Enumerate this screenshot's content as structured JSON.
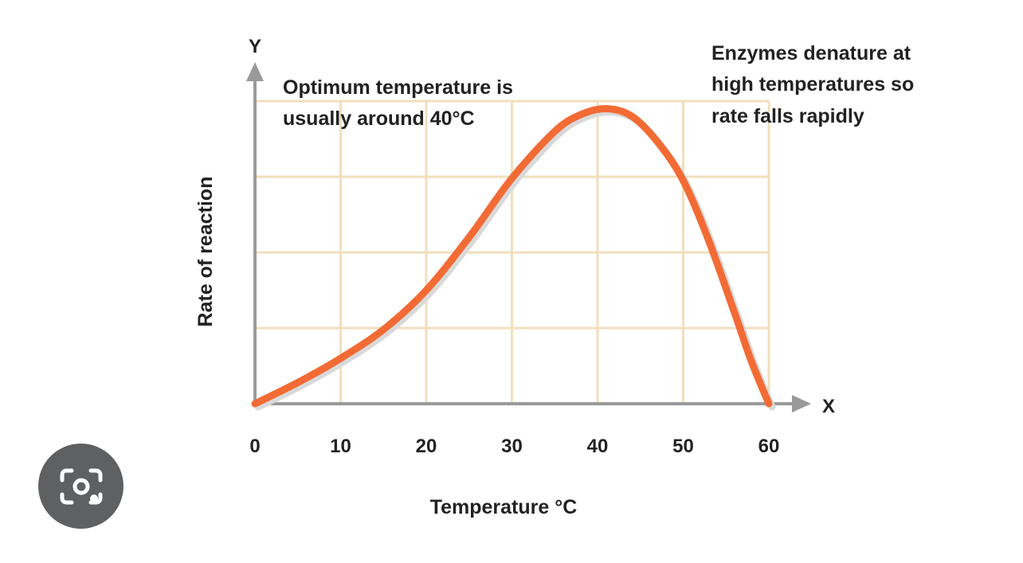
{
  "chart_data": {
    "type": "line",
    "xlabel": "Temperature °C",
    "ylabel": "Rate of reaction",
    "x_axis_letter": "X",
    "y_axis_letter": "Y",
    "xlim": [
      0,
      60
    ],
    "ylim": [
      0,
      4
    ],
    "x_ticks": [
      0,
      10,
      20,
      30,
      40,
      50,
      60
    ],
    "y_gridlines": [
      1,
      2,
      3,
      4
    ],
    "grid": true,
    "series": [
      {
        "color": "#f26b35",
        "x": [
          0,
          5,
          10,
          15,
          20,
          25,
          30,
          35,
          38,
          41,
          44,
          47,
          50,
          53,
          56,
          58,
          60
        ],
        "y": [
          0,
          0.28,
          0.6,
          0.98,
          1.5,
          2.2,
          2.98,
          3.6,
          3.82,
          3.9,
          3.8,
          3.46,
          2.95,
          2.15,
          1.2,
          0.55,
          0
        ]
      }
    ],
    "annotations": [
      {
        "id": "optimum",
        "lines": [
          "Optimum temperature is",
          "usually around 40°C"
        ]
      },
      {
        "id": "denature",
        "lines": [
          "Enzymes denature at",
          "high temperatures so",
          "rate falls rapidly"
        ]
      }
    ],
    "colors": {
      "grid": "#f1dfbd",
      "axis": "#9a9a9a",
      "curve": "#f26b35"
    }
  },
  "lens_button": {
    "icon": "camera-lens-icon",
    "background": "#5f6062"
  }
}
